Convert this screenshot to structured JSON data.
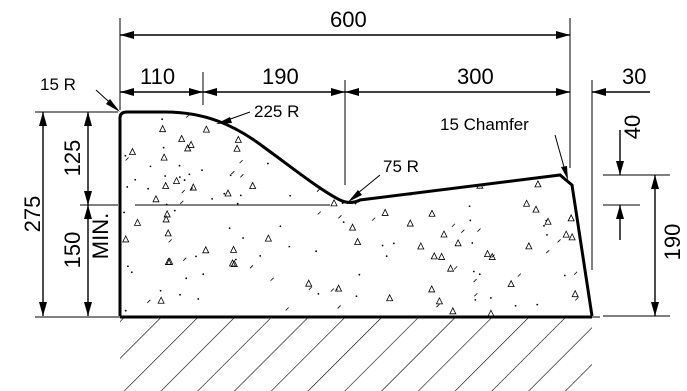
{
  "dimensions": {
    "overall_width": "600",
    "seg_left": "110",
    "seg_mid": "190",
    "seg_right": "300",
    "back_offset": "30",
    "total_height": "275",
    "upper_height": "125",
    "lower_height": "150",
    "min_label": "MIN.",
    "back_height": "190",
    "front_drop": "40"
  },
  "callouts": {
    "radius_15": "15 R",
    "radius_225": "225 R",
    "radius_75": "75 R",
    "chamfer": "15 Chamfer"
  }
}
